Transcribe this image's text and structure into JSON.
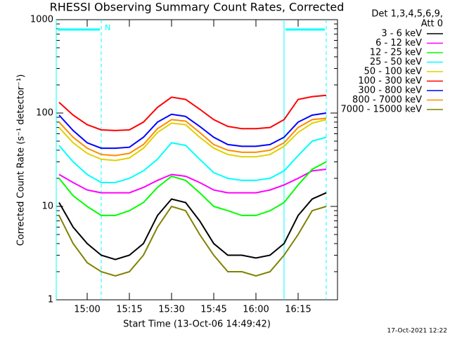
{
  "chart_data": {
    "type": "line",
    "title": "RHESSI Observing Summary Count Rates, Corrected",
    "xlabel": "Start Time (13-Oct-06 14:49:42)",
    "ylabel": "Corrected Count Rate (s⁻¹ detector⁻¹)",
    "detector_label": "Det 1,3,4,5,6,9,",
    "attenuator_label": "Att 0",
    "timestamp": "17-Oct-2021 12:22",
    "flag_label": "N",
    "night_intervals": [
      [
        "14:49",
        "15:05"
      ],
      [
        "16:10",
        "16:25"
      ]
    ],
    "log_y": true,
    "xlim": [
      "14:49",
      "16:29"
    ],
    "xticks": [
      "15:00",
      "15:15",
      "15:30",
      "15:45",
      "16:00",
      "16:15"
    ],
    "ylim": [
      1,
      1000
    ],
    "yticks": [
      1,
      10,
      100,
      1000
    ],
    "x": [
      "14:50",
      "14:55",
      "15:00",
      "15:05",
      "15:10",
      "15:15",
      "15:20",
      "15:25",
      "15:30",
      "15:35",
      "15:40",
      "15:45",
      "15:50",
      "15:55",
      "16:00",
      "16:05",
      "16:10",
      "16:15",
      "16:20",
      "16:25"
    ],
    "series": [
      {
        "name": "3 - 6 keV",
        "color": "#000000",
        "values": [
          11,
          6,
          4,
          3,
          2.7,
          3,
          4,
          8,
          12,
          11,
          7,
          4,
          3,
          3,
          2.8,
          3,
          4,
          8,
          12,
          14
        ]
      },
      {
        "name": "6 - 12 keV",
        "color": "#ff00ff",
        "values": [
          22,
          18,
          15,
          14,
          14,
          14,
          16,
          19,
          22,
          21,
          18,
          15,
          14,
          14,
          14,
          15,
          17,
          20,
          24,
          25
        ]
      },
      {
        "name": "12 - 25 keV",
        "color": "#00ff00",
        "values": [
          20,
          13,
          10,
          8,
          8,
          9,
          11,
          16,
          21,
          19,
          14,
          10,
          9,
          8,
          8,
          9,
          11,
          17,
          25,
          30
        ]
      },
      {
        "name": "25 - 50 keV",
        "color": "#00ffff",
        "values": [
          45,
          30,
          22,
          18,
          18,
          20,
          24,
          32,
          48,
          45,
          32,
          23,
          20,
          19,
          19,
          20,
          24,
          35,
          50,
          55
        ]
      },
      {
        "name": "50 - 100 keV",
        "color": "#e0d000",
        "values": [
          70,
          48,
          37,
          32,
          31,
          33,
          42,
          62,
          78,
          75,
          55,
          42,
          36,
          34,
          34,
          36,
          44,
          62,
          78,
          85
        ]
      },
      {
        "name": "100 - 300 keV",
        "color": "#ff0000",
        "values": [
          130,
          95,
          75,
          66,
          65,
          66,
          80,
          115,
          148,
          140,
          110,
          85,
          72,
          68,
          68,
          70,
          85,
          140,
          150,
          155
        ]
      },
      {
        "name": "300 - 800 keV",
        "color": "#0000ff",
        "values": [
          95,
          65,
          48,
          42,
          42,
          43,
          55,
          80,
          97,
          92,
          72,
          55,
          46,
          44,
          44,
          46,
          55,
          80,
          95,
          100
        ]
      },
      {
        "name": "800 - 7000 keV",
        "color": "#ff8c00",
        "values": [
          80,
          55,
          42,
          36,
          35,
          37,
          46,
          68,
          85,
          82,
          62,
          46,
          40,
          38,
          38,
          40,
          48,
          70,
          85,
          88
        ]
      },
      {
        "name": "7000 - 15000 keV",
        "color": "#808000",
        "values": [
          8,
          4,
          2.5,
          2,
          1.8,
          2,
          3,
          6,
          10,
          9,
          5,
          3,
          2,
          2,
          1.8,
          2,
          3,
          5,
          9,
          10
        ]
      }
    ]
  }
}
